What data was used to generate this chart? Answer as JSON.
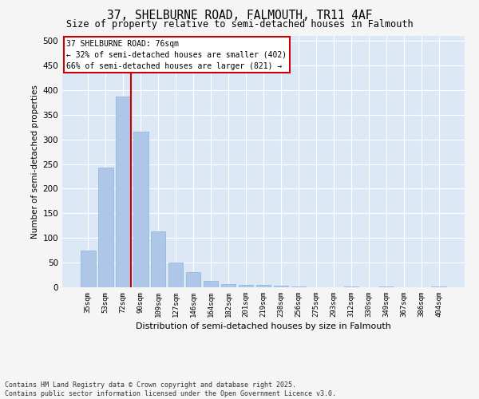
{
  "title_line1": "37, SHELBURNE ROAD, FALMOUTH, TR11 4AF",
  "title_line2": "Size of property relative to semi-detached houses in Falmouth",
  "xlabel": "Distribution of semi-detached houses by size in Falmouth",
  "ylabel": "Number of semi-detached properties",
  "categories": [
    "35sqm",
    "53sqm",
    "72sqm",
    "90sqm",
    "109sqm",
    "127sqm",
    "146sqm",
    "164sqm",
    "182sqm",
    "201sqm",
    "219sqm",
    "238sqm",
    "256sqm",
    "275sqm",
    "293sqm",
    "312sqm",
    "330sqm",
    "349sqm",
    "367sqm",
    "386sqm",
    "404sqm"
  ],
  "values": [
    75,
    243,
    387,
    315,
    113,
    50,
    30,
    13,
    6,
    5,
    5,
    3,
    2,
    0,
    0,
    2,
    0,
    1,
    0,
    0,
    2
  ],
  "bar_color": "#aec6e8",
  "bar_edge_color": "#8ab4d8",
  "vline_color": "#cc0000",
  "vline_x_index": 2,
  "annotation_title": "37 SHELBURNE ROAD: 76sqm",
  "annotation_line2": "← 32% of semi-detached houses are smaller (402)",
  "annotation_line3": "66% of semi-detached houses are larger (821) →",
  "annotation_box_edgecolor": "#cc0000",
  "plot_bg_color": "#dce8f5",
  "grid_color": "#ffffff",
  "fig_bg_color": "#f5f5f5",
  "ylim": [
    0,
    510
  ],
  "yticks": [
    0,
    50,
    100,
    150,
    200,
    250,
    300,
    350,
    400,
    450,
    500
  ],
  "footer_line1": "Contains HM Land Registry data © Crown copyright and database right 2025.",
  "footer_line2": "Contains public sector information licensed under the Open Government Licence v3.0."
}
